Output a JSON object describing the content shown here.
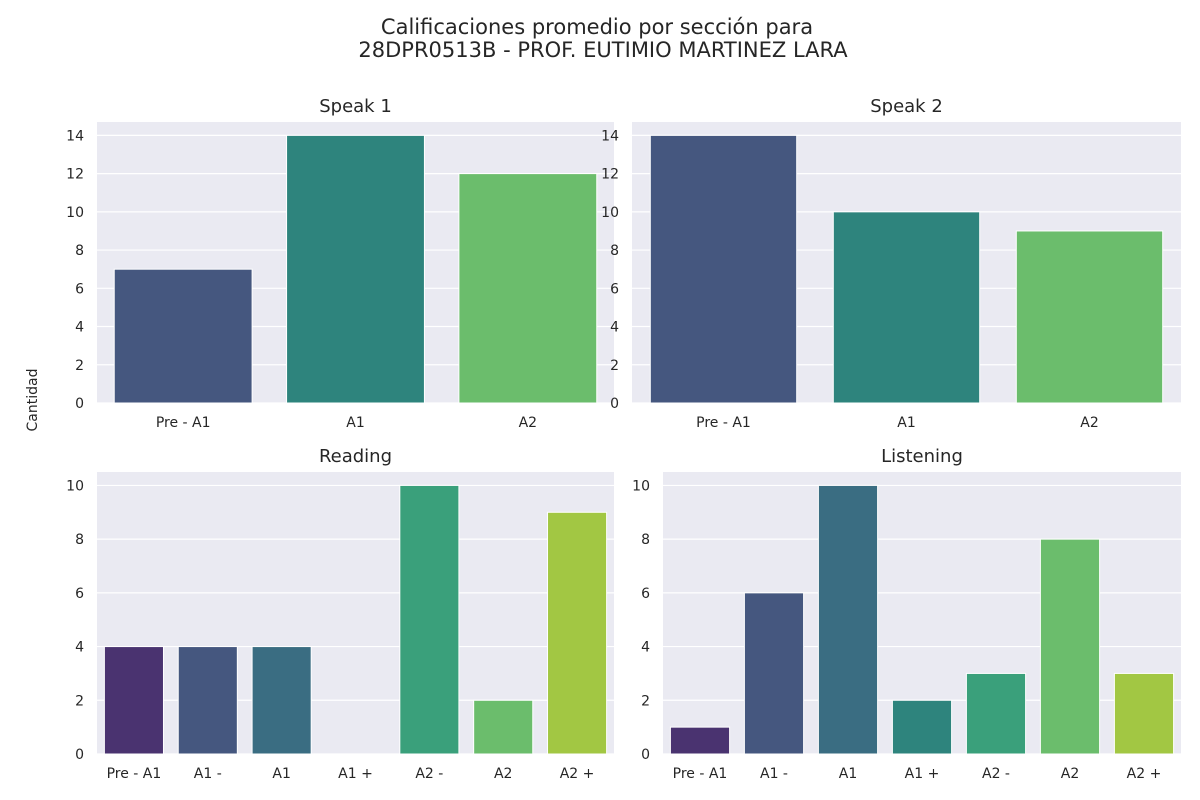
{
  "figure": {
    "title_line1": "Calificaciones promedio por sección para",
    "title_line2": "28DPR0513B - PROF. EUTIMIO MARTINEZ LARA",
    "ylabel": "Cantidad"
  },
  "colors": {
    "panel_background": "#eaeaf2",
    "grid": "#ffffff",
    "palette_3": [
      "#45577f",
      "#2e847d",
      "#6bbd6c"
    ],
    "palette_7": [
      "#4a3370",
      "#45577f",
      "#3a6d82",
      "#2e847d",
      "#3aa07b",
      "#6bbd6c",
      "#a2c743"
    ]
  },
  "chart_data": [
    {
      "type": "bar",
      "title": "Speak 1",
      "categories": [
        "Pre - A1",
        "A1",
        "A2"
      ],
      "values": [
        7,
        14,
        12
      ],
      "ylim": [
        0,
        14.7
      ],
      "yticks": [
        0,
        2,
        4,
        6,
        8,
        10,
        12,
        14
      ],
      "palette": "palette_3",
      "grid": true
    },
    {
      "type": "bar",
      "title": "Speak 2",
      "categories": [
        "Pre - A1",
        "A1",
        "A2"
      ],
      "values": [
        14,
        10,
        9
      ],
      "ylim": [
        0,
        14.7
      ],
      "yticks": [
        0,
        2,
        4,
        6,
        8,
        10,
        12,
        14
      ],
      "palette": "palette_3",
      "grid": true
    },
    {
      "type": "bar",
      "title": "Reading",
      "categories": [
        "Pre - A1",
        "A1 -",
        "A1",
        "A1 +",
        "A2 -",
        "A2",
        "A2 +"
      ],
      "values": [
        4,
        4,
        4,
        0,
        10,
        2,
        9
      ],
      "ylim": [
        0,
        10.5
      ],
      "yticks": [
        0,
        2,
        4,
        6,
        8,
        10
      ],
      "palette": "palette_7",
      "grid": true
    },
    {
      "type": "bar",
      "title": "Listening",
      "categories": [
        "Pre - A1",
        "A1 -",
        "A1",
        "A1 +",
        "A2 -",
        "A2",
        "A2 +"
      ],
      "values": [
        1,
        6,
        10,
        2,
        3,
        8,
        3
      ],
      "ylim": [
        0,
        10.5
      ],
      "yticks": [
        0,
        2,
        4,
        6,
        8,
        10
      ],
      "palette": "palette_7",
      "grid": true
    }
  ]
}
